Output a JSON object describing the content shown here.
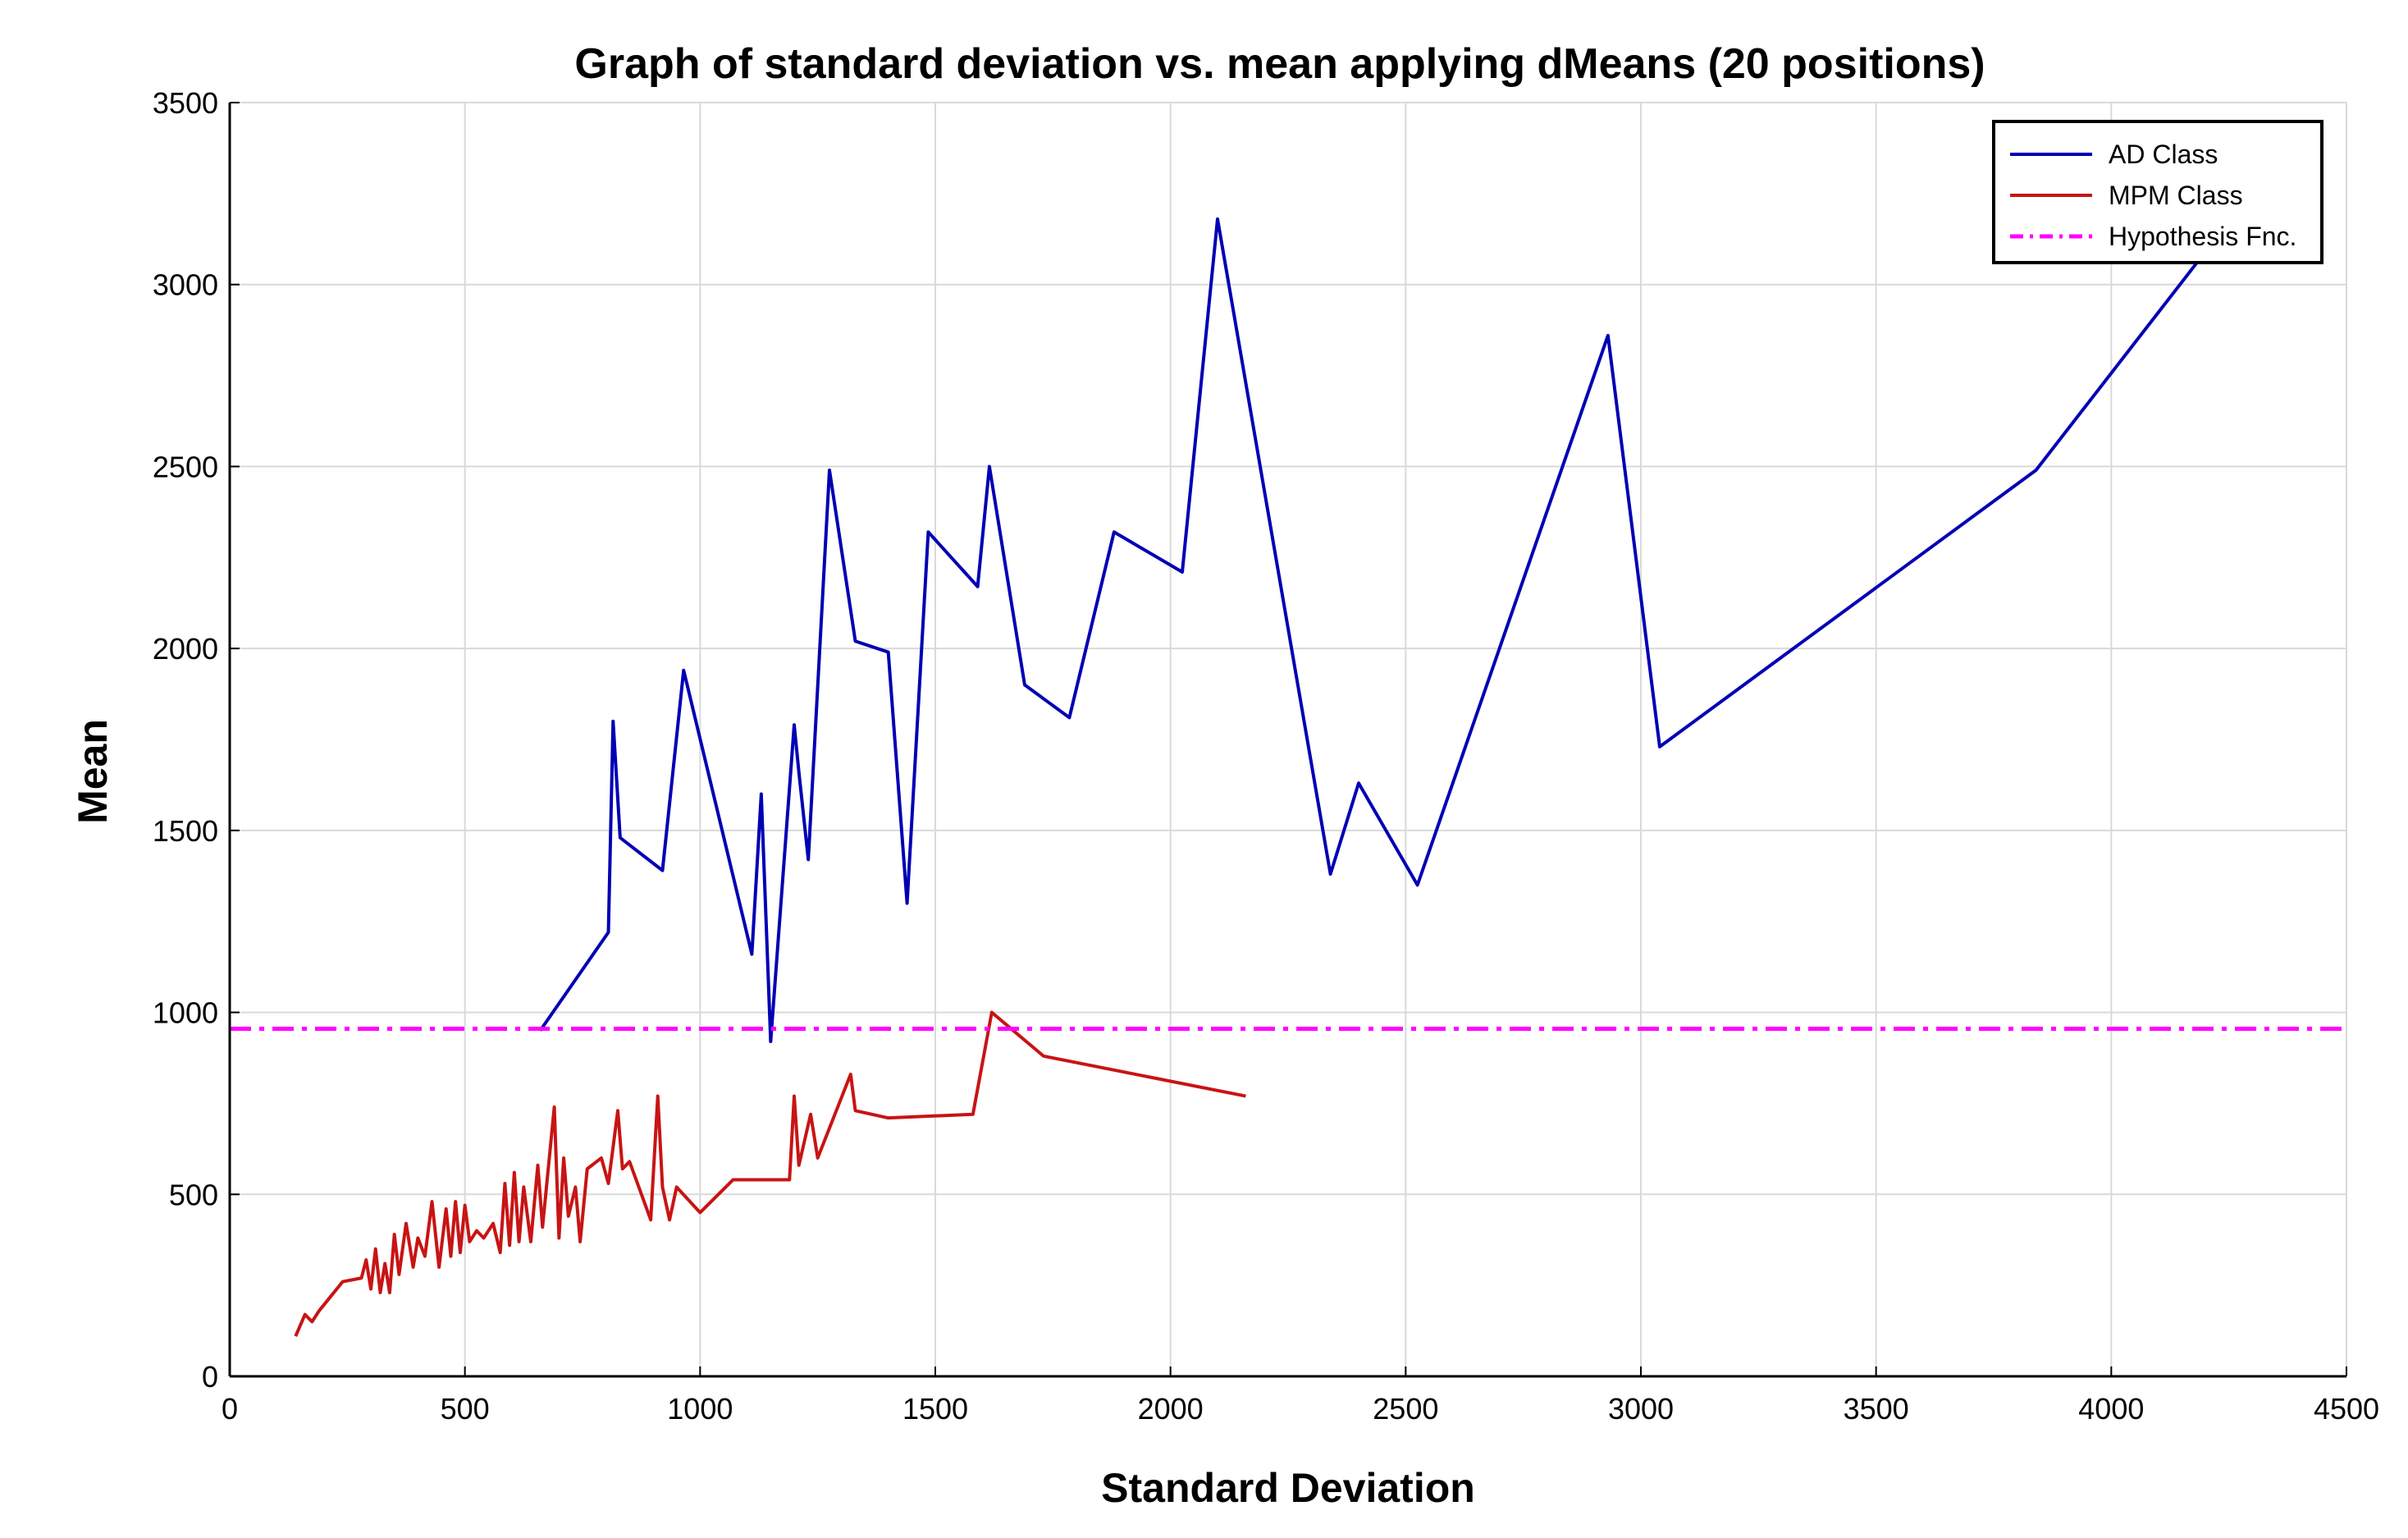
{
  "chart_data": {
    "type": "line",
    "title": "Graph of standard deviation vs. mean applying dMeans (20 positions)",
    "xlabel": "Standard Deviation",
    "ylabel": "Mean",
    "xlim": [
      0,
      4500
    ],
    "ylim": [
      0,
      3500
    ],
    "xticks": [
      0,
      500,
      1000,
      1500,
      2000,
      2500,
      3000,
      3500,
      4000,
      4500
    ],
    "yticks": [
      0,
      500,
      1000,
      1500,
      2000,
      2500,
      3000,
      3500
    ],
    "grid": true,
    "legend_position": "top-right",
    "series": [
      {
        "name": "AD Class",
        "color": "#0000b4",
        "style": "solid",
        "x": [
          660,
          805,
          815,
          830,
          920,
          965,
          1110,
          1130,
          1150,
          1200,
          1210,
          1230,
          1275,
          1330,
          1400,
          1440,
          1485,
          1590,
          1615,
          1690,
          1785,
          1880,
          2025,
          2100,
          2340,
          2400,
          2525,
          2930,
          3040,
          3840,
          4200
        ],
        "y": [
          950,
          1220,
          1800,
          1480,
          1390,
          1940,
          1160,
          1600,
          920,
          1790,
          1660,
          1420,
          2490,
          2020,
          1990,
          1300,
          2320,
          2170,
          2500,
          1900,
          1810,
          2320,
          2210,
          3180,
          1380,
          1630,
          1350,
          2860,
          1730,
          2490,
          3090
        ]
      },
      {
        "name": "MPM Class",
        "color": "#c81414",
        "style": "solid",
        "x": [
          140,
          160,
          175,
          190,
          240,
          280,
          290,
          300,
          310,
          320,
          330,
          340,
          350,
          360,
          375,
          390,
          400,
          415,
          430,
          445,
          460,
          470,
          480,
          490,
          500,
          510,
          525,
          540,
          560,
          575,
          585,
          595,
          605,
          615,
          625,
          640,
          655,
          665,
          690,
          700,
          710,
          720,
          735,
          745,
          760,
          790,
          805,
          825,
          835,
          850,
          895,
          910,
          920,
          935,
          950,
          1000,
          1070,
          1190,
          1200,
          1210,
          1235,
          1250,
          1320,
          1330,
          1400,
          1580,
          1620,
          1730,
          2160
        ],
        "y": [
          110,
          170,
          150,
          180,
          260,
          270,
          320,
          240,
          350,
          230,
          310,
          230,
          390,
          280,
          420,
          300,
          380,
          330,
          480,
          300,
          460,
          330,
          480,
          340,
          470,
          370,
          400,
          380,
          420,
          340,
          530,
          360,
          560,
          370,
          520,
          370,
          580,
          410,
          740,
          380,
          600,
          440,
          520,
          370,
          570,
          600,
          530,
          730,
          570,
          590,
          430,
          770,
          520,
          430,
          520,
          450,
          540,
          540,
          770,
          580,
          720,
          600,
          830,
          730,
          710,
          720,
          1000,
          880,
          770
        ]
      },
      {
        "name": "Hypothesis Fnc.",
        "color": "#ff00ff",
        "style": "dashdot",
        "x": [
          0,
          4500
        ],
        "y": [
          955,
          955
        ]
      }
    ]
  }
}
